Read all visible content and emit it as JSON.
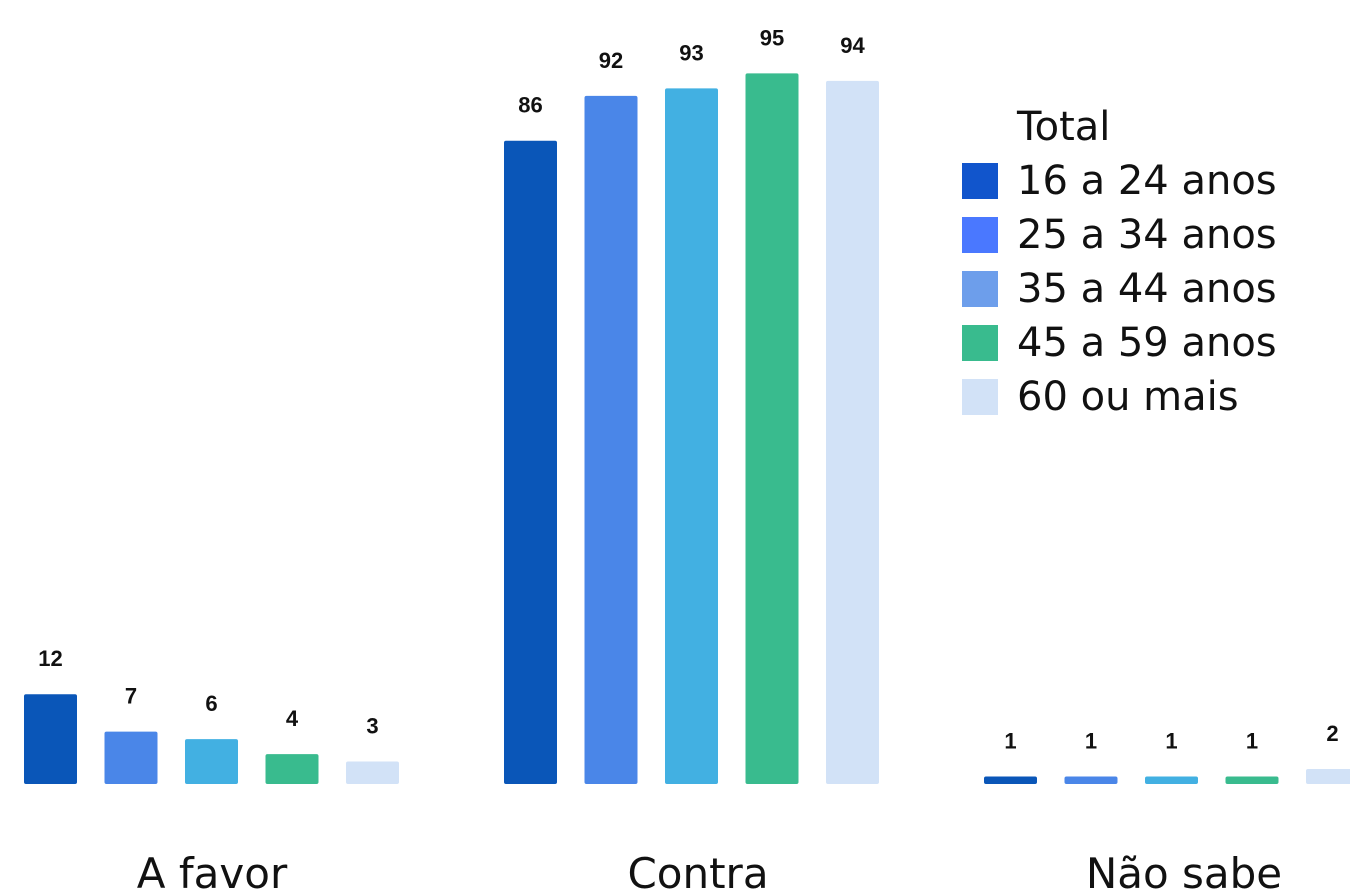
{
  "chart_data": {
    "type": "bar",
    "categories": [
      "A favor",
      "Contra",
      "Não sabe"
    ],
    "legend_title": "Total",
    "series": [
      {
        "name": "16 a 24 anos",
        "color": "#0a56b8",
        "values": [
          12,
          86,
          1
        ]
      },
      {
        "name": "25 a 34 anos",
        "color": "#4a86e8",
        "values": [
          7,
          92,
          1
        ]
      },
      {
        "name": "35 a 44 anos",
        "color": "#42b0e2",
        "values": [
          6,
          93,
          1
        ]
      },
      {
        "name": "45 a 59 anos",
        "color": "#39bb8e",
        "values": [
          4,
          95,
          1
        ]
      },
      {
        "name": "60 ou mais",
        "color": "#d2e2f7",
        "values": [
          3,
          94,
          2
        ]
      }
    ],
    "legend_colors": [
      "#1155cc",
      "#4a78ff",
      "#6d9eeb",
      "#39bb8e",
      "#d2e2f7"
    ],
    "legend_position": "top-right",
    "grid": false
  }
}
